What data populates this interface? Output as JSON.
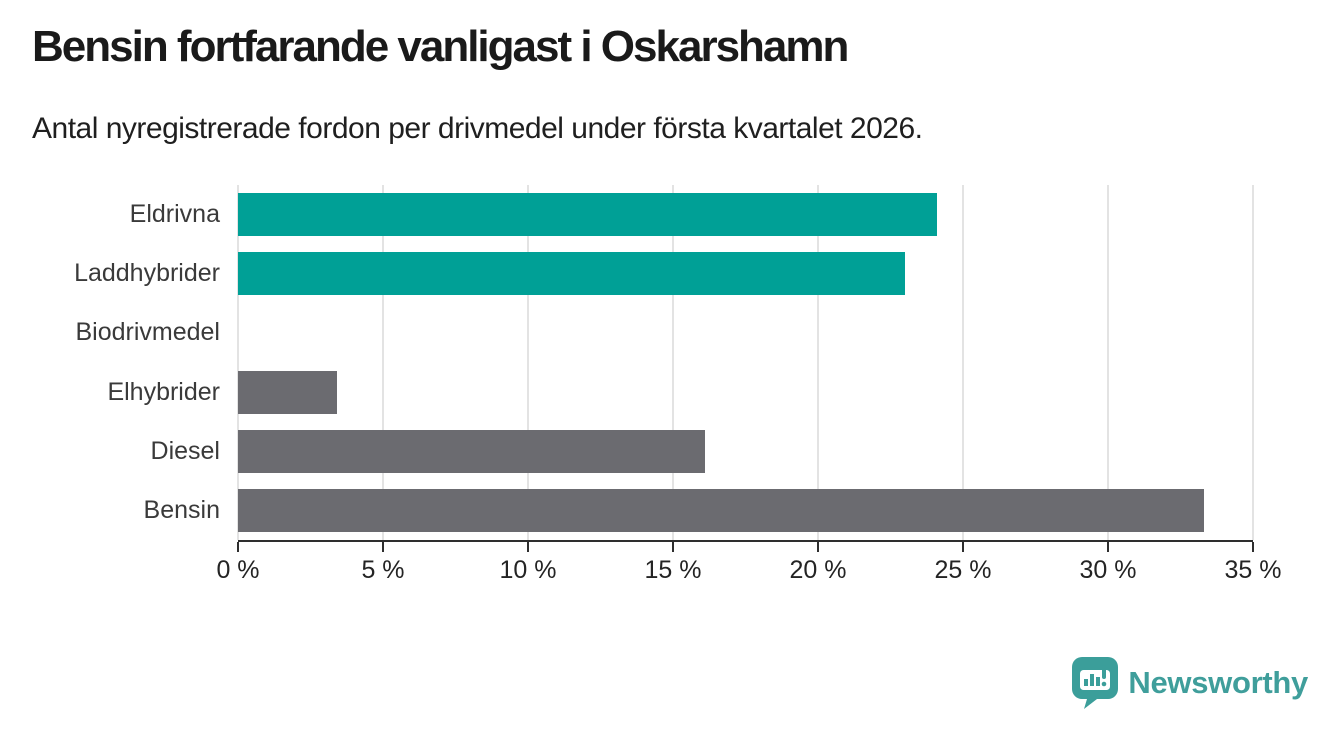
{
  "chart_data": {
    "type": "bar",
    "orientation": "horizontal",
    "title": "Bensin fortfarande vanligast i Oskarshamn",
    "subtitle": "Antal nyregistrerade fordon per drivmedel under första kvartalet 2026.",
    "categories": [
      "Eldrivna",
      "Laddhybrider",
      "Biodrivmedel",
      "Elhybrider",
      "Diesel",
      "Bensin"
    ],
    "values": [
      24.1,
      23.0,
      0,
      3.4,
      16.1,
      33.3
    ],
    "unit": "%",
    "xlabel": "",
    "ylabel": "",
    "xlim": [
      0,
      35
    ],
    "x_ticks": [
      {
        "value": 0,
        "label": "0 %"
      },
      {
        "value": 5,
        "label": "5 %"
      },
      {
        "value": 10,
        "label": "10 %"
      },
      {
        "value": 15,
        "label": "15 %"
      },
      {
        "value": 20,
        "label": "20 %"
      },
      {
        "value": 25,
        "label": "25 %"
      },
      {
        "value": 30,
        "label": "30 %"
      },
      {
        "value": 35,
        "label": "35 %"
      }
    ],
    "grid": true,
    "legend": false,
    "bar_colors": [
      "#00a096",
      "#00a096",
      "#6b6b70",
      "#6b6b70",
      "#6b6b70",
      "#6b6b70"
    ]
  },
  "colors": {
    "highlight_teal": "#00a096",
    "neutral_gray": "#6b6b70",
    "gridline": "#e3e3e3",
    "axis": "#2e2e2e",
    "title_text": "#1a1a1a",
    "subtitle_text": "#1f1f1f",
    "brand_teal": "#3f9e9b",
    "background": "#ffffff"
  },
  "branding": {
    "logo_text": "Newsworthy"
  }
}
